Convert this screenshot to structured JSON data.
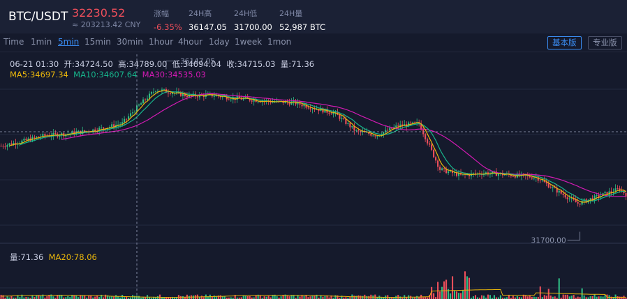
{
  "header": {
    "pair": "BTC/USDT",
    "price": "32230.52",
    "cny": "≈ 203213.42 CNY",
    "stats": [
      {
        "label": "涨幅",
        "value": "-6.35%",
        "color": "#ef4f5b"
      },
      {
        "label": "24H高",
        "value": "36147.05"
      },
      {
        "label": "24H低",
        "value": "31700.00"
      },
      {
        "label": "24H量",
        "value": "52,987 BTC"
      }
    ]
  },
  "intervals": [
    "Time",
    "1min",
    "5min",
    "15min",
    "30min",
    "1hour",
    "4hour",
    "1day",
    "1week",
    "1mon"
  ],
  "active_interval": "5min",
  "modes": [
    "基本版",
    "专业版"
  ],
  "active_mode": "基本版",
  "info": {
    "time": "06-21 01:30",
    "open": "开:34724.50",
    "high": "高:34789.00",
    "low": "低:34694.04",
    "close": "收:34715.03",
    "volume": "量:71.36"
  },
  "ma": {
    "ma5": "MA5:34697.34",
    "ma10": "MA10:34607.64",
    "ma30": "MA30:34535.03"
  },
  "volume_legend": {
    "vol": "量:71.36",
    "ma20": "MA20:78.06"
  },
  "colors": {
    "up": "#2fbd85",
    "down": "#ef4f5b",
    "ma5": "#e9b60c",
    "ma10": "#17b48b",
    "ma30": "#d21ab3",
    "accent": "#3a8ef5"
  },
  "chart_data": {
    "type": "candlestick",
    "y_range": [
      31400,
      36600
    ],
    "annotations": [
      {
        "label": "36147.05",
        "value": 36147.05,
        "kind": "high"
      },
      {
        "label": "31700.00",
        "value": 31700.0,
        "kind": "low"
      }
    ],
    "series_shape": [
      [
        0,
        34050
      ],
      [
        10,
        34180
      ],
      [
        20,
        34330
      ],
      [
        30,
        34380
      ],
      [
        40,
        34450
      ],
      [
        50,
        34560
      ],
      [
        58,
        34680
      ],
      [
        66,
        35180
      ],
      [
        74,
        35620
      ],
      [
        82,
        35540
      ],
      [
        90,
        35440
      ],
      [
        100,
        35470
      ],
      [
        110,
        35390
      ],
      [
        120,
        35340
      ],
      [
        130,
        35280
      ],
      [
        140,
        35260
      ],
      [
        150,
        35100
      ],
      [
        160,
        34950
      ],
      [
        170,
        34450
      ],
      [
        180,
        34350
      ],
      [
        190,
        34610
      ],
      [
        200,
        34680
      ],
      [
        210,
        33400
      ],
      [
        220,
        33230
      ],
      [
        232,
        33300
      ],
      [
        244,
        33240
      ],
      [
        256,
        33180
      ],
      [
        266,
        32800
      ],
      [
        276,
        32450
      ],
      [
        286,
        32650
      ],
      [
        296,
        32860
      ],
      [
        299,
        32700
      ]
    ],
    "candles": 300
  }
}
